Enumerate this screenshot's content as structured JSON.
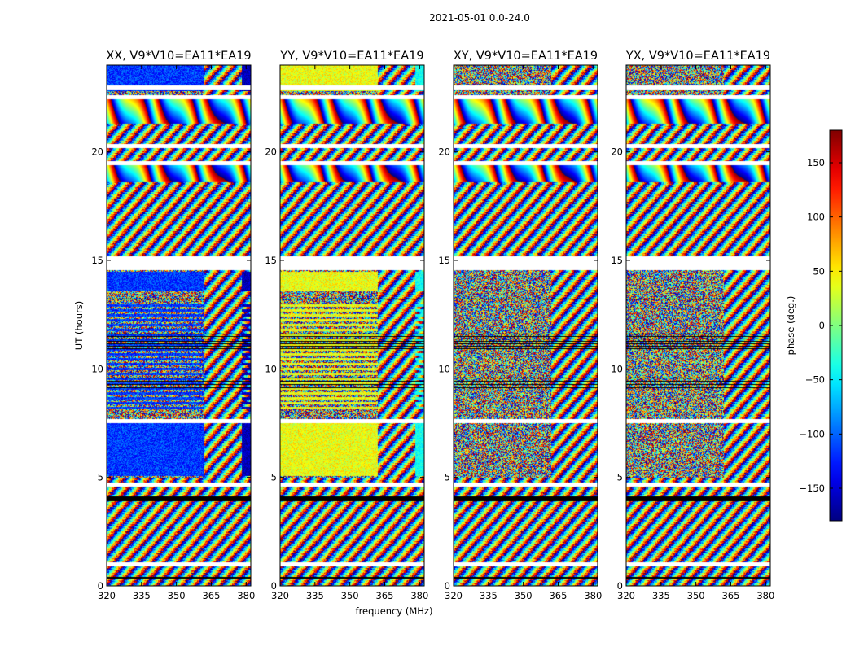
{
  "chart_data": {
    "type": "heatmap",
    "suptitle": "2021-05-01 0.0-24.0",
    "xlabel": "frequency (MHz)",
    "ylabel": "UT (hours)",
    "xlim": [
      320,
      382
    ],
    "ylim": [
      0,
      24
    ],
    "xticks": [
      "320",
      "335",
      "350",
      "365",
      "380"
    ],
    "xtick_values": [
      320,
      335,
      350,
      365,
      380
    ],
    "yticks": [
      "0",
      "5",
      "10",
      "15",
      "20"
    ],
    "ytick_values": [
      0,
      5,
      10,
      15,
      20
    ],
    "panels": [
      {
        "title": "XX, V9*V10=EA11*EA19",
        "base_phase": -115,
        "right_phase": -160
      },
      {
        "title": "YY, V9*V10=EA11*EA19",
        "base_phase": 40,
        "right_phase": -40
      },
      {
        "title": "XY, V9*V10=EA11*EA19",
        "base_phase": null,
        "right_phase": null
      },
      {
        "title": "YX, V9*V10=EA11*EA19",
        "base_phase": null,
        "right_phase": null
      }
    ],
    "colorbar": {
      "label": "phase (deg.)",
      "range": [
        -180,
        180
      ],
      "ticks": [
        "150",
        "100",
        "50",
        "0",
        "−50",
        "−100",
        "−150"
      ],
      "tick_values": [
        150,
        100,
        50,
        0,
        -50,
        -100,
        -150
      ]
    },
    "blank_rows_hours": [
      23.0,
      22.55,
      20.3,
      19.5,
      15.1,
      14.85,
      7.6,
      4.7,
      1.0
    ]
  }
}
